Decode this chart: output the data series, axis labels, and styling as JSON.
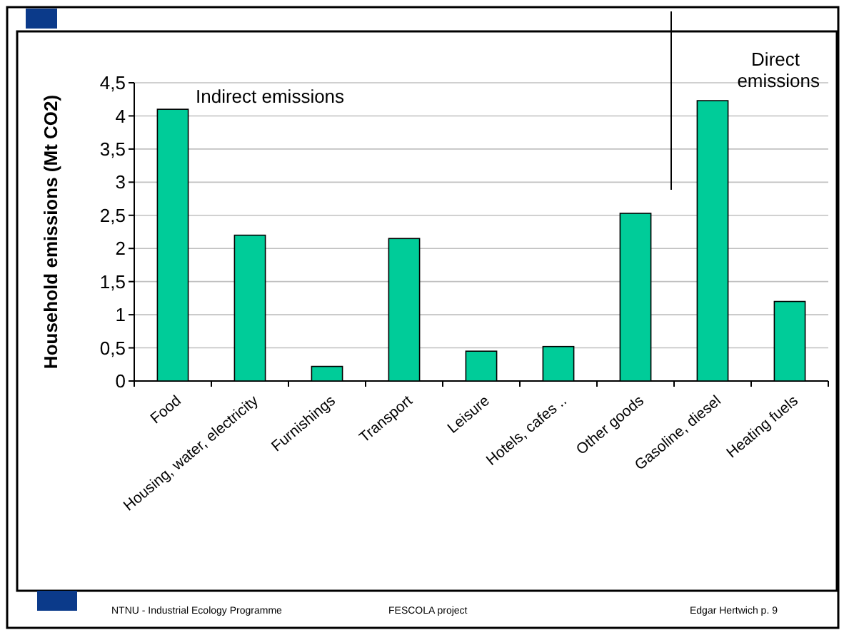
{
  "chart_data": {
    "type": "bar",
    "ylabel": "Household emissions (Mt CO2)",
    "categories": [
      "Food",
      "Housing, water, electricity",
      "Furnishings",
      "Transport",
      "Leisure",
      "Hotels, cafes ..",
      "Other goods",
      "Gasoline, diesel",
      "Heating fuels"
    ],
    "values": [
      4.1,
      2.2,
      0.22,
      2.15,
      0.45,
      0.52,
      2.53,
      4.23,
      1.2
    ],
    "color": "#00cc99",
    "ylim": [
      0,
      4.5
    ],
    "yticks": [
      0,
      {
        "value": 0.5,
        "label": "0,5"
      },
      1,
      {
        "value": 1.5,
        "label": "1,5"
      },
      2,
      {
        "value": 2.5,
        "label": "2,5"
      },
      3,
      {
        "value": 3.5,
        "label": "3,5"
      },
      4,
      {
        "value": 4.5,
        "label": "4,5"
      }
    ],
    "grid": "y",
    "annotations": [
      {
        "text": "Indirect emissions"
      },
      {
        "text": "Direct emissions"
      },
      {
        "text": "NTNU - Industrial Ecology Programme"
      },
      {
        "text": "FESCOLA  project"
      },
      {
        "text": "Edgar Hertwich  p. 9"
      }
    ]
  }
}
